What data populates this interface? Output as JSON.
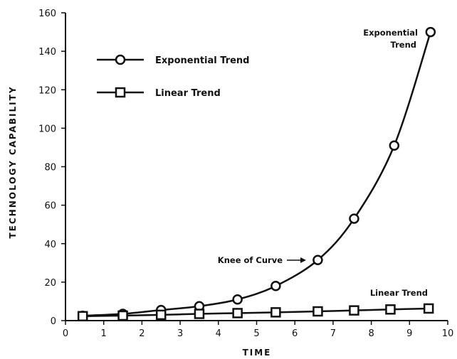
{
  "chart_data": {
    "type": "line",
    "title": "",
    "xlabel": "TIME",
    "ylabel": "TECHNOLOGY CAPABILITY",
    "xlim": [
      0,
      10
    ],
    "ylim": [
      0,
      160
    ],
    "x_ticks": [
      "0",
      "1",
      "2",
      "3",
      "4",
      "5",
      "6",
      "7",
      "8",
      "9",
      "10"
    ],
    "y_ticks": [
      "0",
      "20",
      "40",
      "60",
      "80",
      "100",
      "120",
      "140",
      "160"
    ],
    "grid": false,
    "legend_placement": "top-left",
    "series": [
      {
        "name": "Exponential Trend",
        "marker": "circle",
        "x": [
          0.45,
          1.5,
          2.5,
          3.5,
          4.5,
          5.5,
          6.6,
          7.55,
          8.6,
          9.55
        ],
        "y": [
          2.5,
          3.5,
          5.5,
          7.5,
          11,
          18,
          31.5,
          53,
          91,
          150
        ]
      },
      {
        "name": "Linear Trend",
        "marker": "square",
        "x": [
          0.45,
          1.5,
          2.5,
          3.5,
          4.5,
          5.5,
          6.6,
          7.55,
          8.5,
          9.5
        ],
        "y": [
          2.3,
          2.6,
          3.0,
          3.5,
          3.9,
          4.3,
          4.8,
          5.3,
          5.8,
          6.3
        ]
      }
    ],
    "annotations": {
      "exponential_end": [
        "Exponential",
        "Trend"
      ],
      "knee": "Knee of Curve",
      "linear_end": "Linear Trend"
    }
  }
}
